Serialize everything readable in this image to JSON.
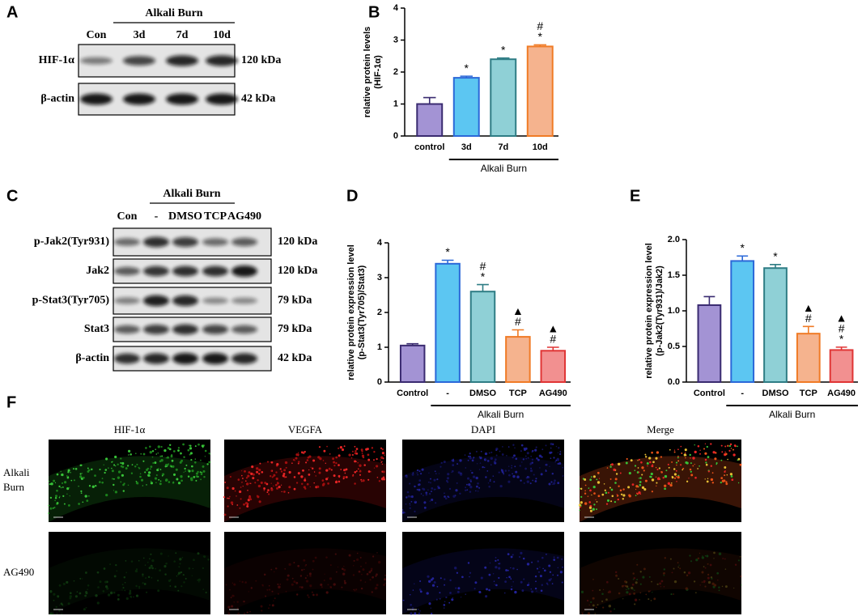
{
  "panel_letters": [
    "A",
    "B",
    "C",
    "D",
    "E",
    "F"
  ],
  "blot_a": {
    "group": "Alkali Burn",
    "lanes": [
      "Con",
      "3d",
      "7d",
      "10d"
    ],
    "rows": [
      {
        "label": "HIF-1α",
        "size": "120 kDa"
      },
      {
        "label": "β-actin",
        "size": "42 kDa"
      }
    ]
  },
  "blot_c": {
    "group": "Alkali Burn",
    "lanes": [
      "Con",
      "-",
      "DMSO",
      "TCP",
      "AG490"
    ],
    "rows": [
      {
        "label": "p-Jak2(Tyr931)",
        "size": "120 kDa"
      },
      {
        "label": "Jak2",
        "size": "120 kDa"
      },
      {
        "label": "p-Stat3(Tyr705)",
        "size": "79 kDa"
      },
      {
        "label": "Stat3",
        "size": "79 kDa"
      },
      {
        "label": "β-actin",
        "size": "42 kDa"
      }
    ]
  },
  "chart_data": [
    {
      "type": "bar",
      "ylabel": [
        "relative protein levels",
        "(HIF-1α)"
      ],
      "categories": [
        "control",
        "3d",
        "7d",
        "10d"
      ],
      "values": [
        1.0,
        1.82,
        2.4,
        2.8
      ],
      "errors": [
        0.2,
        0.05,
        0.04,
        0.05
      ],
      "colors": [
        "#a393d4",
        "#5cc6f2",
        "#8fd0d6",
        "#f5b38e"
      ],
      "edge_colors": [
        "#3a2b70",
        "#2b68d8",
        "#2f7d85",
        "#f07b26"
      ],
      "annotations": [
        [],
        [
          "*"
        ],
        [
          "*"
        ],
        [
          "#",
          "*"
        ]
      ],
      "group_label": "Alkali Burn",
      "ylim": [
        0,
        4
      ],
      "yticks": [
        0,
        1,
        2,
        3,
        4
      ]
    },
    {
      "type": "bar",
      "ylabel": [
        "relative protein expression level",
        "(p-Stat3(Tyr705)/Stat3)"
      ],
      "categories": [
        "Control",
        "-",
        "DMSO",
        "TCP",
        "AG490"
      ],
      "values": [
        1.05,
        3.4,
        2.6,
        1.3,
        0.9
      ],
      "errors": [
        0.05,
        0.1,
        0.2,
        0.2,
        0.1
      ],
      "colors": [
        "#a393d4",
        "#5cc6f2",
        "#8fd0d6",
        "#f5b38e",
        "#f29090"
      ],
      "edge_colors": [
        "#3a2b70",
        "#2b68d8",
        "#2f7d85",
        "#f07b26",
        "#e03535"
      ],
      "annotations": [
        [],
        [
          "*"
        ],
        [
          "#",
          "*"
        ],
        [
          "▲",
          "#"
        ],
        [
          "▲",
          "#"
        ]
      ],
      "group_label": "Alkali Burn",
      "ylim": [
        0,
        4
      ],
      "yticks": [
        0,
        1,
        2,
        3,
        4
      ]
    },
    {
      "type": "bar",
      "ylabel": [
        "relative protein expression level",
        "(p-Jak2(Tyr931)/Jak2)"
      ],
      "categories": [
        "Control",
        "-",
        "DMSO",
        "TCP",
        "AG490"
      ],
      "values": [
        1.08,
        1.7,
        1.6,
        0.68,
        0.45
      ],
      "errors": [
        0.12,
        0.07,
        0.05,
        0.1,
        0.04
      ],
      "colors": [
        "#a393d4",
        "#5cc6f2",
        "#8fd0d6",
        "#f5b38e",
        "#f29090"
      ],
      "edge_colors": [
        "#3a2b70",
        "#2b68d8",
        "#2f7d85",
        "#f07b26",
        "#e03535"
      ],
      "annotations": [
        [],
        [
          "*"
        ],
        [
          "*"
        ],
        [
          "▲",
          "#"
        ],
        [
          "▲",
          "#",
          "*"
        ]
      ],
      "group_label": "Alkali Burn",
      "ylim": [
        0,
        2
      ],
      "yticks": [
        {
          "value": 0,
          "label": "0.0"
        },
        0.5,
        {
          "value": 1,
          "label": "1.0"
        },
        1.5,
        {
          "value": 2,
          "label": "2.0"
        }
      ]
    }
  ],
  "fluorescence": {
    "channels": [
      "HIF-1α",
      "VEGFA",
      "DAPI",
      "Merge"
    ],
    "rows": [
      [
        "Alkali",
        "Burn"
      ],
      [
        "AG490"
      ]
    ]
  }
}
